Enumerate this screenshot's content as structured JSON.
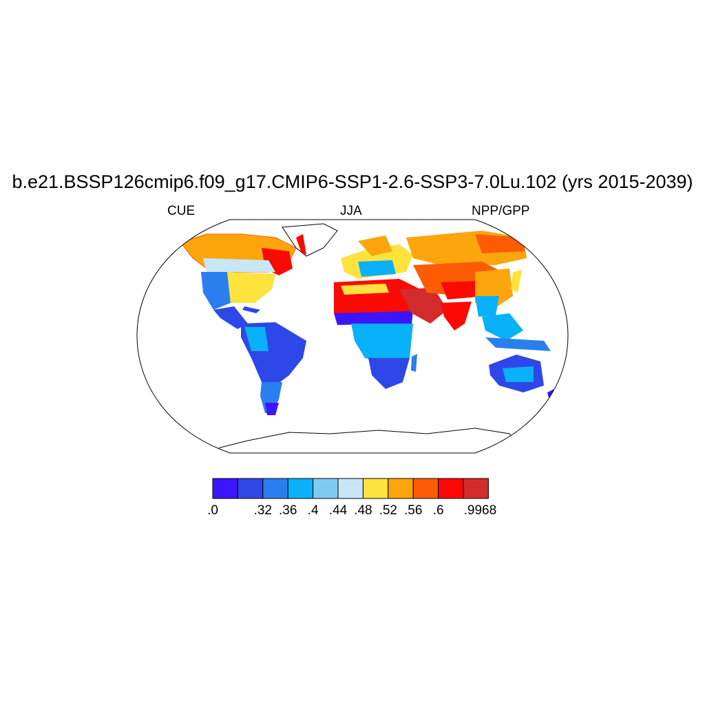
{
  "title": "b.e21.BSSP126cmip6.f09_g17.CMIP6-SSP1-2.6-SSP3-7.0Lu.102 (yrs 2015-2039)",
  "left_label": "CUE",
  "center_label": "JJA",
  "right_label": "NPP/GPP",
  "colorbar": {
    "colors": [
      "#3d15fa",
      "#2e47e8",
      "#2a7ef0",
      "#08b1f8",
      "#7ecbf0",
      "#c8e6f6",
      "#fde33c",
      "#fda50c",
      "#fd5c04",
      "#fb0a04",
      "#d32b2b"
    ],
    "labels": [
      ".0",
      ".32",
      ".36",
      ".4",
      ".44",
      ".48",
      ".52",
      ".56",
      ".6",
      ".9968"
    ]
  },
  "map_regions": [
    {
      "name": "north-america-boreal",
      "class": 7
    },
    {
      "name": "canada-east",
      "class": 9
    },
    {
      "name": "usa-west",
      "class": 2
    },
    {
      "name": "usa-east",
      "class": 6
    },
    {
      "name": "central-america",
      "class": 1
    },
    {
      "name": "amazon",
      "class": 1
    },
    {
      "name": "south-america-south",
      "class": 2
    },
    {
      "name": "sahara",
      "class": 9
    },
    {
      "name": "sahel",
      "class": 0
    },
    {
      "name": "central-africa",
      "class": 3
    },
    {
      "name": "southern-africa",
      "class": 2
    },
    {
      "name": "europe",
      "class": 6
    },
    {
      "name": "siberia",
      "class": 8
    },
    {
      "name": "central-asia",
      "class": 8
    },
    {
      "name": "arabia",
      "class": 9
    },
    {
      "name": "india",
      "class": 9
    },
    {
      "name": "china",
      "class": 7
    },
    {
      "name": "southeast-asia",
      "class": 3
    },
    {
      "name": "australia",
      "class": 2
    },
    {
      "name": "new-zealand",
      "class": 0
    },
    {
      "name": "greenland",
      "class": -1
    },
    {
      "name": "antarctica",
      "class": -1
    }
  ]
}
